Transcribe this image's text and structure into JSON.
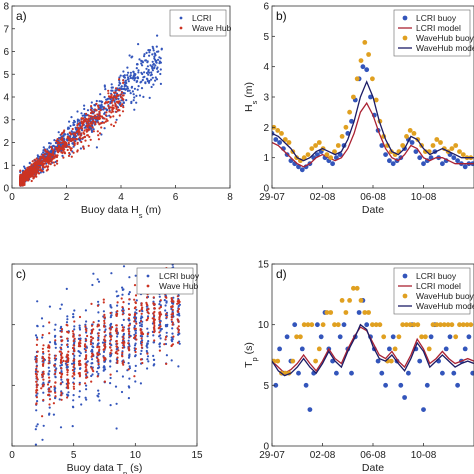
{
  "chart_data": [
    {
      "id": "a",
      "type": "scatter",
      "panel_label": "a)",
      "xlabel": "Buoy data H",
      "xlabel_sub": "s",
      "xlabel_unit": " (m)",
      "ylabel": "",
      "xlim": [
        0,
        8
      ],
      "ylim": [
        0,
        8
      ],
      "x_ticks": [
        "0",
        "2",
        "4",
        "6",
        "8"
      ],
      "y_ticks": [
        "0",
        "1",
        "2",
        "3",
        "4",
        "5",
        "6",
        "7",
        "8"
      ],
      "legend_position": "top-right",
      "series": [
        {
          "name": "LCRI",
          "color": "#3355bb",
          "marker": "dot"
        },
        {
          "name": "Wave Hub",
          "color": "#cc3322",
          "marker": "dot"
        }
      ]
    },
    {
      "id": "b",
      "type": "line",
      "panel_label": "b)",
      "xlabel": "Date",
      "ylabel": "H",
      "ylabel_sub": "s",
      "ylabel_unit": " (m)",
      "xlim": [
        0,
        16
      ],
      "ylim": [
        0,
        6
      ],
      "x_ticks": [
        "29-07",
        "02-08",
        "06-08",
        "10-08"
      ],
      "y_ticks": [
        "0",
        "1",
        "2",
        "3",
        "4",
        "5",
        "6"
      ],
      "legend_position": "top-right",
      "series": [
        {
          "name": "LCRI buoy",
          "color": "#3355bb",
          "style": "points",
          "x": [
            0,
            0.3,
            0.6,
            0.9,
            1.2,
            1.5,
            1.8,
            2.1,
            2.4,
            2.7,
            3.0,
            3.3,
            3.6,
            3.9,
            4.2,
            4.5,
            4.8,
            5.1,
            5.4,
            5.7,
            6.0,
            6.3,
            6.6,
            6.9,
            7.2,
            7.5,
            7.8,
            8.1,
            8.4,
            8.7,
            9.0,
            9.3,
            9.6,
            9.9,
            10.2,
            10.5,
            10.8,
            11.1,
            11.4,
            11.7,
            12.0,
            12.3,
            12.6,
            12.9,
            13.2,
            13.5,
            13.8,
            14.1,
            14.4,
            14.7,
            15.0,
            15.3,
            15.6,
            15.9
          ],
          "y": [
            1.8,
            1.6,
            1.5,
            1.3,
            1.1,
            0.9,
            0.8,
            0.7,
            0.6,
            0.7,
            0.8,
            1.0,
            1.1,
            1.2,
            1.0,
            0.9,
            0.8,
            1.0,
            1.1,
            1.4,
            1.8,
            2.2,
            2.9,
            3.6,
            4.0,
            3.9,
            3.0,
            2.4,
            1.9,
            1.4,
            1.1,
            0.9,
            0.8,
            0.9,
            1.0,
            1.3,
            1.6,
            1.5,
            1.2,
            1.0,
            0.8,
            0.9,
            1.0,
            1.2,
            1.0,
            0.8,
            0.9,
            1.1,
            1.0,
            0.9,
            0.8,
            0.7,
            0.8,
            0.8
          ]
        },
        {
          "name": "LCRI model",
          "color": "#aa2233",
          "style": "line",
          "x": [
            0,
            0.5,
            1,
            1.5,
            2,
            2.5,
            3,
            3.5,
            4,
            4.5,
            5,
            5.5,
            6,
            6.5,
            7,
            7.5,
            8,
            8.5,
            9,
            9.5,
            10,
            10.5,
            11,
            11.5,
            12,
            12.5,
            13,
            13.5,
            14,
            14.5,
            15,
            15.5,
            16
          ],
          "y": [
            1.5,
            1.4,
            1.2,
            1.0,
            0.8,
            0.7,
            0.8,
            1.0,
            1.1,
            1.0,
            0.9,
            1.0,
            1.3,
            1.8,
            2.5,
            2.8,
            2.4,
            1.8,
            1.3,
            1.0,
            0.9,
            1.1,
            1.4,
            1.3,
            1.0,
            0.9,
            1.0,
            1.0,
            0.9,
            0.8,
            0.8,
            0.8,
            0.8
          ]
        },
        {
          "name": "WaveHub buoy",
          "color": "#e0a020",
          "style": "points",
          "x": [
            0.15,
            0.45,
            0.75,
            1.05,
            1.35,
            1.65,
            1.95,
            2.25,
            2.55,
            2.85,
            3.15,
            3.45,
            3.75,
            4.05,
            4.35,
            4.65,
            4.95,
            5.25,
            5.55,
            5.85,
            6.15,
            6.45,
            6.75,
            7.05,
            7.35,
            7.65,
            7.95,
            8.25,
            8.55,
            8.85,
            9.15,
            9.45,
            9.75,
            10.05,
            10.35,
            10.65,
            10.95,
            11.25,
            11.55,
            11.85,
            12.15,
            12.45,
            12.75,
            13.05,
            13.35,
            13.65,
            13.95,
            14.25,
            14.55,
            14.85,
            15.15,
            15.45,
            15.75
          ],
          "y": [
            2.0,
            1.9,
            1.8,
            1.6,
            1.5,
            1.2,
            1.0,
            0.9,
            1.0,
            1.1,
            1.3,
            1.4,
            1.5,
            1.3,
            1.1,
            1.0,
            1.2,
            1.4,
            1.7,
            2.0,
            2.5,
            3.0,
            3.6,
            4.2,
            4.8,
            4.4,
            3.6,
            2.9,
            2.2,
            1.7,
            1.4,
            1.2,
            1.1,
            1.2,
            1.4,
            1.7,
            1.9,
            1.8,
            1.6,
            1.4,
            1.2,
            1.2,
            1.4,
            1.6,
            1.5,
            1.3,
            1.2,
            1.3,
            1.4,
            1.2,
            1.1,
            1.0,
            1.0
          ]
        },
        {
          "name": "WaveHub model",
          "color": "#1c1c66",
          "style": "line",
          "x": [
            0,
            0.5,
            1,
            1.5,
            2,
            2.5,
            3,
            3.5,
            4,
            4.5,
            5,
            5.5,
            6,
            6.5,
            7,
            7.5,
            8,
            8.5,
            9,
            9.5,
            10,
            10.5,
            11,
            11.5,
            12,
            12.5,
            13,
            13.5,
            14,
            14.5,
            15,
            15.5,
            16
          ],
          "y": [
            1.8,
            1.7,
            1.5,
            1.3,
            1.0,
            0.9,
            1.0,
            1.2,
            1.3,
            1.2,
            1.1,
            1.2,
            1.6,
            2.2,
            3.0,
            3.5,
            3.0,
            2.2,
            1.6,
            1.2,
            1.1,
            1.3,
            1.7,
            1.6,
            1.3,
            1.1,
            1.2,
            1.3,
            1.2,
            1.1,
            1.0,
            1.0,
            1.0
          ]
        }
      ]
    },
    {
      "id": "c",
      "type": "scatter",
      "panel_label": "c)",
      "xlabel": "Buoy data T",
      "xlabel_sub": "p",
      "xlabel_unit": " (s)",
      "ylabel": "",
      "xlim": [
        0,
        15
      ],
      "ylim": [
        0,
        15
      ],
      "x_ticks": [
        "0",
        "5",
        "10",
        "15"
      ],
      "y_ticks": [
        "",
        "",
        "",
        ""
      ],
      "legend_position": "top-right",
      "series": [
        {
          "name": "LCRI buoy",
          "color": "#3355bb",
          "marker": "dot"
        },
        {
          "name": "Wave Hub",
          "color": "#cc3322",
          "marker": "dot"
        }
      ]
    },
    {
      "id": "d",
      "type": "line",
      "panel_label": "d)",
      "xlabel": "Date",
      "ylabel": "T",
      "ylabel_sub": "p",
      "ylabel_unit": " (s)",
      "xlim": [
        0,
        16
      ],
      "ylim": [
        0,
        15
      ],
      "x_ticks": [
        "29-07",
        "02-08",
        "06-08",
        "10-08"
      ],
      "y_ticks": [
        "0",
        "5",
        "10",
        "15"
      ],
      "legend_position": "top-right",
      "series": [
        {
          "name": "LCRI buoy",
          "color": "#3355bb",
          "style": "points",
          "x": [
            0,
            0.3,
            0.6,
            0.9,
            1.2,
            1.5,
            1.8,
            2.1,
            2.4,
            2.7,
            3.0,
            3.3,
            3.6,
            3.9,
            4.2,
            4.5,
            4.8,
            5.1,
            5.4,
            5.7,
            6.0,
            6.3,
            6.6,
            6.9,
            7.2,
            7.5,
            7.8,
            8.1,
            8.4,
            8.7,
            9.0,
            9.3,
            9.6,
            9.9,
            10.2,
            10.5,
            10.8,
            11.1,
            11.4,
            11.7,
            12.0,
            12.3,
            12.6,
            12.9,
            13.2,
            13.5,
            13.8,
            14.1,
            14.4,
            14.7,
            15.0,
            15.3,
            15.6,
            15.9
          ],
          "y": [
            7,
            5,
            8,
            6,
            9,
            7,
            10,
            6,
            8,
            5,
            3,
            6,
            10,
            9,
            11,
            8,
            7,
            6,
            9,
            10,
            8,
            6,
            9,
            11,
            12,
            10,
            9,
            8,
            7,
            6,
            5,
            8,
            9,
            7,
            5,
            4,
            6,
            10,
            8,
            7,
            3,
            5,
            9,
            10,
            7,
            6,
            8,
            9,
            6,
            5,
            7,
            8,
            9,
            6
          ]
        },
        {
          "name": "LCRI model",
          "color": "#aa2233",
          "style": "line",
          "x": [
            0,
            0.5,
            1,
            1.5,
            2,
            2.5,
            3,
            3.5,
            4,
            4.5,
            5,
            5.5,
            6,
            6.5,
            7,
            7.5,
            8,
            8.5,
            9,
            9.5,
            10,
            10.5,
            11,
            11.5,
            12,
            12.5,
            13,
            13.5,
            14,
            14.5,
            15,
            15.5,
            16
          ],
          "y": [
            7,
            6.5,
            6,
            6.3,
            6.8,
            7.5,
            6.8,
            6.2,
            7,
            8,
            7.2,
            6.8,
            8,
            9,
            9.8,
            9.5,
            8.5,
            7.5,
            7.2,
            7.8,
            7,
            6.5,
            7.5,
            8.8,
            8,
            6.8,
            7.2,
            7.8,
            7.2,
            6.8,
            7,
            7.2,
            7
          ]
        },
        {
          "name": "WaveHub buoy",
          "color": "#e0a020",
          "style": "points",
          "x": [
            0.15,
            0.45,
            0.75,
            1.05,
            1.35,
            1.65,
            1.95,
            2.25,
            2.55,
            2.85,
            3.15,
            3.45,
            3.75,
            4.05,
            4.35,
            4.65,
            4.95,
            5.25,
            5.55,
            5.85,
            6.15,
            6.45,
            6.75,
            7.05,
            7.35,
            7.65,
            7.95,
            8.25,
            8.55,
            8.85,
            9.15,
            9.45,
            9.75,
            10.05,
            10.35,
            10.65,
            10.95,
            11.25,
            11.55,
            11.85,
            12.15,
            12.45,
            12.75,
            13.05,
            13.35,
            13.65,
            13.95,
            14.25,
            14.55,
            14.85,
            15.15,
            15.45,
            15.75
          ],
          "y": [
            7,
            7,
            6,
            6,
            6,
            7,
            9,
            9,
            10,
            10,
            10,
            7,
            8,
            10,
            11,
            11,
            10,
            10,
            12,
            11,
            12,
            13,
            13,
            12,
            11,
            11,
            10,
            10,
            10,
            9,
            7,
            7,
            8,
            9,
            10,
            10,
            10,
            10,
            10,
            9,
            9,
            8,
            10,
            10,
            10,
            10,
            10,
            10,
            9,
            10,
            10,
            10,
            10
          ]
        },
        {
          "name": "WaveHub model",
          "color": "#1c1c66",
          "style": "line",
          "x": [
            0,
            0.5,
            1,
            1.5,
            2,
            2.5,
            3,
            3.5,
            4,
            4.5,
            5,
            5.5,
            6,
            6.5,
            7,
            7.5,
            8,
            8.5,
            9,
            9.5,
            10,
            10.5,
            11,
            11.5,
            12,
            12.5,
            13,
            13.5,
            14,
            14.5,
            15,
            15.5,
            16
          ],
          "y": [
            7,
            6.2,
            5.8,
            6,
            6.5,
            7.2,
            6.5,
            6,
            6.8,
            7.8,
            7,
            6.5,
            7.8,
            8.8,
            10,
            9.6,
            8.2,
            7.2,
            7,
            7.5,
            6.8,
            6.2,
            7.2,
            8.5,
            7.8,
            6.5,
            7,
            7.5,
            7,
            6.5,
            6.8,
            7,
            6.8
          ]
        }
      ]
    }
  ]
}
